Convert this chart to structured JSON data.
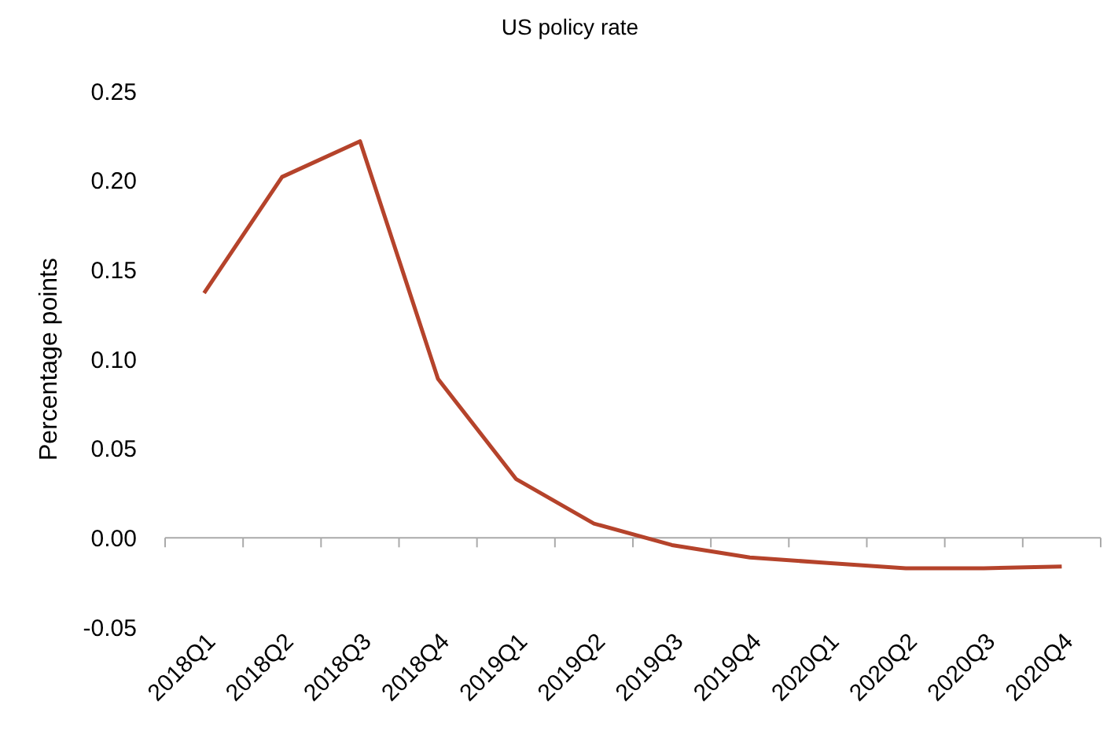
{
  "chart_data": {
    "type": "line",
    "title": "US policy rate",
    "ylabel": "Percentage points",
    "categories": [
      "2018Q1",
      "2018Q2",
      "2018Q3",
      "2018Q4",
      "2019Q1",
      "2019Q2",
      "2019Q3",
      "2019Q4",
      "2020Q1",
      "2020Q2",
      "2020Q3",
      "2020Q4"
    ],
    "series": [
      {
        "color": "#b5432b",
        "values": [
          0.137,
          0.202,
          0.222,
          0.089,
          0.033,
          0.008,
          -0.004,
          -0.011,
          -0.014,
          -0.017,
          -0.017,
          -0.016
        ]
      }
    ],
    "ylim": [
      -0.05,
      0.25
    ],
    "yticks": [
      {
        "value": -0.05,
        "label": "-0.05"
      },
      {
        "value": 0,
        "label": "0.00"
      },
      {
        "value": 0.05,
        "label": "0.05"
      },
      {
        "value": 0.1,
        "label": "0.10"
      },
      {
        "value": 0.15,
        "label": "0.15"
      },
      {
        "value": 0.2,
        "label": "0.20"
      },
      {
        "value": 0.25,
        "label": "0.25"
      }
    ],
    "marker": "none",
    "line_style": "solid"
  }
}
